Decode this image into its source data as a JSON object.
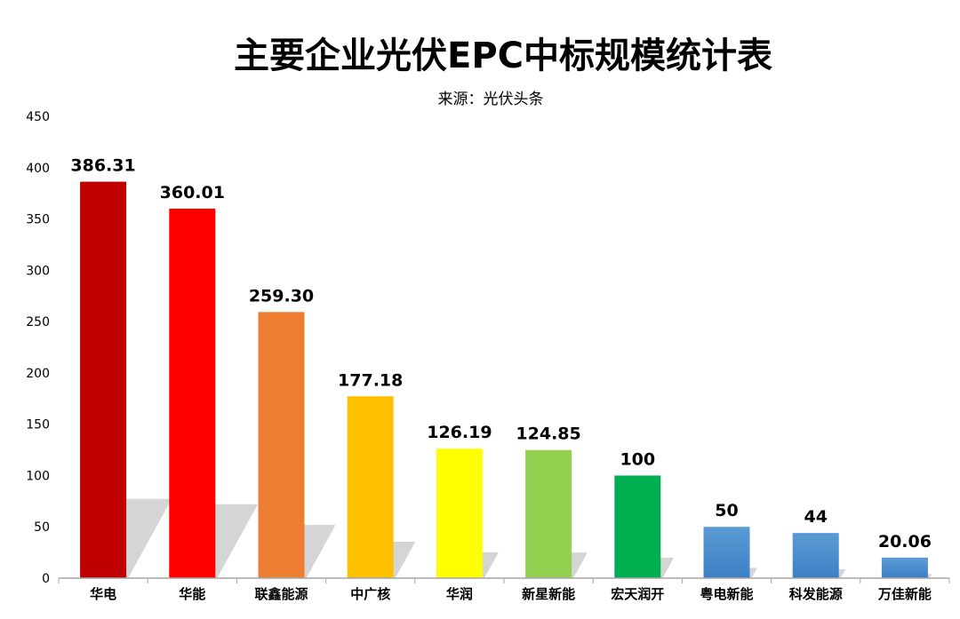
{
  "chart_data": {
    "type": "bar",
    "title": "主要企业光伏EPC中标规模统计表",
    "subtitle": "来源：光伏头条",
    "xlabel": "",
    "ylabel": "",
    "ylim": [
      0,
      450
    ],
    "yticks": [
      0,
      50,
      100,
      150,
      200,
      250,
      300,
      350,
      400,
      450
    ],
    "grid": false,
    "legend": "none",
    "categories": [
      "华电",
      "华能",
      "联鑫能源",
      "中广核",
      "华润",
      "新星新能",
      "宏天润开",
      "粤电新能",
      "科发能源",
      "万佳新能"
    ],
    "values": [
      386.31,
      360.01,
      259.3,
      177.18,
      126.19,
      124.85,
      100,
      50,
      44,
      20.06
    ],
    "value_labels": [
      "386.31",
      "360.01",
      "259.30",
      "177.18",
      "126.19",
      "124.85",
      "100",
      "50",
      "44",
      "20.06"
    ],
    "colors": [
      "#C00000",
      "#FF0000",
      "#ED7D31",
      "#FFC000",
      "#FFFF00",
      "#92D050",
      "#00B050",
      "#5B9BD5",
      "#5B9BD5",
      "#5B9BD5"
    ]
  }
}
